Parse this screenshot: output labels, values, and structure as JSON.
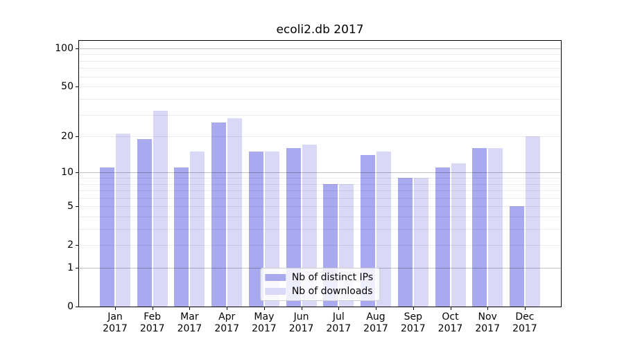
{
  "title": "ecoli2.db 2017",
  "chart_data": {
    "type": "bar",
    "title": "ecoli2.db 2017",
    "categories": [
      "Jan 2017",
      "Feb 2017",
      "Mar 2017",
      "Apr 2017",
      "May 2017",
      "Jun 2017",
      "Jul 2017",
      "Aug 2017",
      "Sep 2017",
      "Oct 2017",
      "Nov 2017",
      "Dec 2017"
    ],
    "months": [
      "Jan",
      "Feb",
      "Mar",
      "Apr",
      "May",
      "Jun",
      "Jul",
      "Aug",
      "Sep",
      "Oct",
      "Nov",
      "Dec"
    ],
    "year": "2017",
    "series": [
      {
        "name": "Nb of distinct IPs",
        "color": "#a9a9f0",
        "values": [
          11,
          19,
          11,
          26,
          15,
          16,
          8,
          14,
          9,
          11,
          16,
          5
        ]
      },
      {
        "name": "Nb of downloads",
        "color": "#d9d9f7",
        "values": [
          21,
          32,
          15,
          28,
          15,
          17,
          8,
          15,
          9,
          12,
          16,
          20
        ]
      }
    ],
    "xlabel": "",
    "ylabel": "",
    "yaxis": {
      "scale": "log10(1+x)",
      "tick_labels": [
        100,
        50,
        20,
        10,
        5,
        2,
        1,
        0
      ],
      "major_gridlines": [
        1,
        10,
        100
      ],
      "minor_gridlines": [
        2,
        3,
        4,
        5,
        6,
        7,
        8,
        9,
        20,
        30,
        40,
        50,
        60,
        70,
        80,
        90
      ],
      "range": [
        0,
        115
      ]
    },
    "grid": true,
    "legend_position": "lower center"
  }
}
